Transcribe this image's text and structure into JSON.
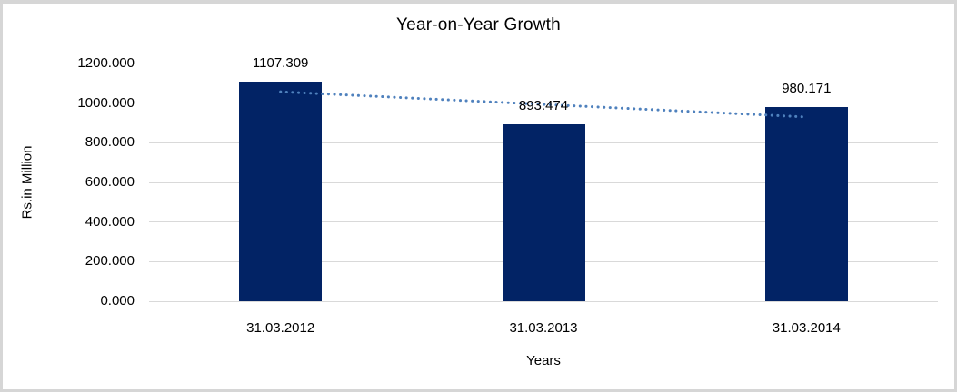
{
  "frame": {
    "border_color": "#d6d6d6",
    "background_color": "#ffffff"
  },
  "chart_data": {
    "type": "bar",
    "title": "Year-on-Year Growth",
    "xlabel": "Years",
    "ylabel": "Rs.in Million",
    "categories": [
      "31.03.2012",
      "31.03.2013",
      "31.03.2014"
    ],
    "values": [
      1107.309,
      893.474,
      980.171
    ],
    "data_labels": [
      "1107.309",
      "893.474",
      "980.171"
    ],
    "ylim": [
      0,
      1200
    ],
    "yticks": [
      0,
      200,
      400,
      600,
      800,
      1000,
      1200
    ],
    "ytick_labels": [
      "0.000",
      "200.000",
      "400.000",
      "600.000",
      "800.000",
      "1000.000",
      "1200.000"
    ],
    "grid": true,
    "legend": "none",
    "bar_color": "#022365",
    "gridline_color": "#d9d9d9",
    "text_color": "#000000",
    "trendline": {
      "type": "linear",
      "style": "dotted",
      "color": "#4f81bd",
      "fit_values": [
        1057.22,
        993.651,
        930.082
      ]
    }
  }
}
